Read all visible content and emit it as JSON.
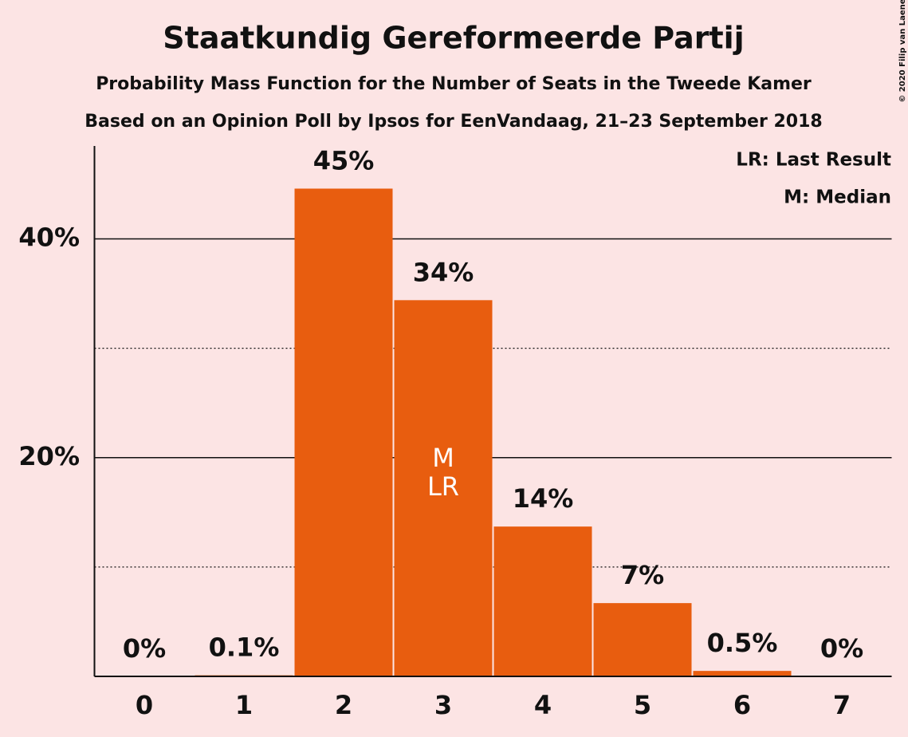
{
  "chart_data": {
    "type": "bar",
    "title": "Staatkundig Gereformeerde Partij",
    "subtitle": "Probability Mass Function for the Number of Seats in the Tweede Kamer",
    "subtitle2": "Based on an Opinion Poll by Ipsos for EenVandaag, 21–23 September 2018",
    "copyright": "© 2020 Filip van Laenen",
    "legend": [
      "LR: Last Result",
      "M: Median"
    ],
    "categories": [
      "0",
      "1",
      "2",
      "3",
      "4",
      "5",
      "6",
      "7"
    ],
    "values": [
      0,
      0.1,
      44.6,
      34.4,
      13.7,
      6.7,
      0.5,
      0
    ],
    "value_labels": [
      "0%",
      "0.1%",
      "45%",
      "34%",
      "14%",
      "7%",
      "0.5%",
      "0%"
    ],
    "color": "#e85d0f",
    "median": {
      "category": "3",
      "label": "M"
    },
    "last_result": {
      "category": "3",
      "label": "LR"
    },
    "ylim": [
      0,
      48.5
    ],
    "yticks": [
      {
        "value": 20,
        "label": "20%"
      },
      {
        "value": 40,
        "label": "40%"
      }
    ],
    "minor_yticks": [
      10,
      30
    ],
    "grid": true
  }
}
